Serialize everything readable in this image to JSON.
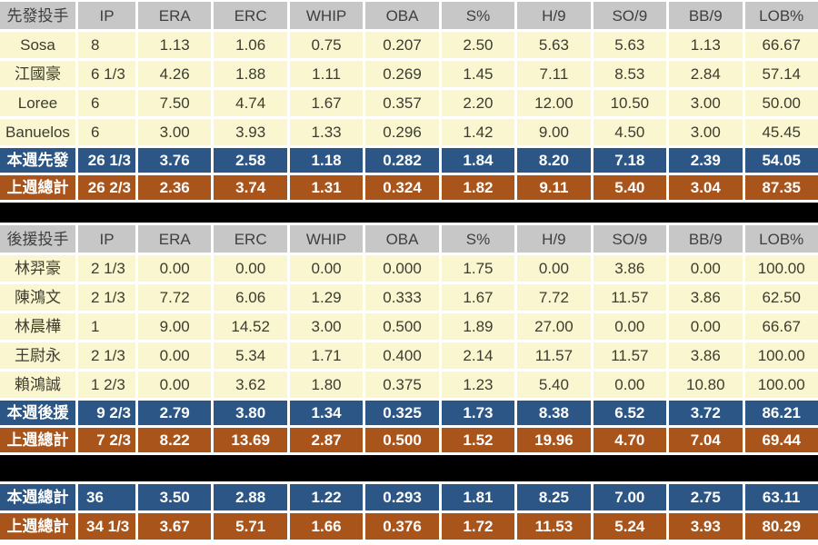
{
  "colors": {
    "header_bg": "#c7c7c7",
    "header_text": "#3f3f3f",
    "data_row_bg": "#faf7d0",
    "data_row_text": "#3d3c2e",
    "week_row_bg": "#2b5685",
    "lastweek_row_bg": "#a9541b",
    "summary_text": "#ffffff",
    "separator": "#000000",
    "grid_border": "#ffffff"
  },
  "chart_data": {
    "type": "table",
    "stat_columns": [
      "IP",
      "ERA",
      "ERC",
      "WHIP",
      "OBA",
      "S%",
      "H/9",
      "SO/9",
      "BB/9",
      "LOB%"
    ],
    "sections": [
      {
        "id": "starters",
        "header_label": "先發投手",
        "rows": [
          {
            "type": "data",
            "label": "Sosa",
            "values": [
              "8",
              "1.13",
              "1.06",
              "0.75",
              "0.207",
              "2.50",
              "5.63",
              "5.63",
              "1.13",
              "66.67"
            ]
          },
          {
            "type": "data",
            "label": "江國豪",
            "values": [
              "6 1/3",
              "4.26",
              "1.88",
              "1.11",
              "0.269",
              "1.45",
              "7.11",
              "8.53",
              "2.84",
              "57.14"
            ]
          },
          {
            "type": "data",
            "label": "Loree",
            "values": [
              "6",
              "7.50",
              "4.74",
              "1.67",
              "0.357",
              "2.20",
              "12.00",
              "10.50",
              "3.00",
              "50.00"
            ]
          },
          {
            "type": "data",
            "label": "Banuelos",
            "values": [
              "6",
              "3.00",
              "3.93",
              "1.33",
              "0.296",
              "1.42",
              "9.00",
              "4.50",
              "3.00",
              "45.45"
            ]
          },
          {
            "type": "week",
            "label": "本週先發",
            "values": [
              "26 1/3",
              "3.76",
              "2.58",
              "1.18",
              "0.282",
              "1.84",
              "8.20",
              "7.18",
              "2.39",
              "54.05"
            ]
          },
          {
            "type": "last",
            "label": "上週總計",
            "values": [
              "26 2/3",
              "2.36",
              "3.74",
              "1.31",
              "0.324",
              "1.82",
              "9.11",
              "5.40",
              "3.04",
              "87.35"
            ]
          }
        ]
      },
      {
        "id": "relievers",
        "header_label": "後援投手",
        "rows": [
          {
            "type": "data",
            "label": "林羿豪",
            "values": [
              "2 1/3",
              "0.00",
              "0.00",
              "0.00",
              "0.000",
              "1.75",
              "0.00",
              "3.86",
              "0.00",
              "100.00"
            ]
          },
          {
            "type": "data",
            "label": "陳鴻文",
            "values": [
              "2 1/3",
              "7.72",
              "6.06",
              "1.29",
              "0.333",
              "1.67",
              "7.72",
              "11.57",
              "3.86",
              "62.50"
            ]
          },
          {
            "type": "data",
            "label": "林晨樺",
            "values": [
              "1",
              "9.00",
              "14.52",
              "3.00",
              "0.500",
              "1.89",
              "27.00",
              "0.00",
              "0.00",
              "66.67"
            ]
          },
          {
            "type": "data",
            "label": "王尉永",
            "values": [
              "2 1/3",
              "0.00",
              "5.34",
              "1.71",
              "0.400",
              "2.14",
              "11.57",
              "11.57",
              "3.86",
              "100.00"
            ]
          },
          {
            "type": "data",
            "label": "賴鴻誠",
            "values": [
              "1 2/3",
              "0.00",
              "3.62",
              "1.80",
              "0.375",
              "1.23",
              "5.40",
              "0.00",
              "10.80",
              "100.00"
            ]
          },
          {
            "type": "week",
            "label": "本週後援",
            "values": [
              "9 2/3",
              "2.79",
              "3.80",
              "1.34",
              "0.325",
              "1.73",
              "8.38",
              "6.52",
              "3.72",
              "86.21"
            ]
          },
          {
            "type": "last",
            "label": "上週總計",
            "values": [
              "7 2/3",
              "8.22",
              "13.69",
              "2.87",
              "0.500",
              "1.52",
              "19.96",
              "4.70",
              "7.04",
              "69.44"
            ]
          }
        ]
      },
      {
        "id": "totals",
        "header_label": null,
        "rows": [
          {
            "type": "week",
            "label": "本週總計",
            "values": [
              "36",
              "3.50",
              "2.88",
              "1.22",
              "0.293",
              "1.81",
              "8.25",
              "7.00",
              "2.75",
              "63.11"
            ]
          },
          {
            "type": "last",
            "label": "上週總計",
            "values": [
              "34 1/3",
              "3.67",
              "5.71",
              "1.66",
              "0.376",
              "1.72",
              "11.53",
              "5.24",
              "3.93",
              "80.29"
            ]
          }
        ]
      }
    ]
  }
}
